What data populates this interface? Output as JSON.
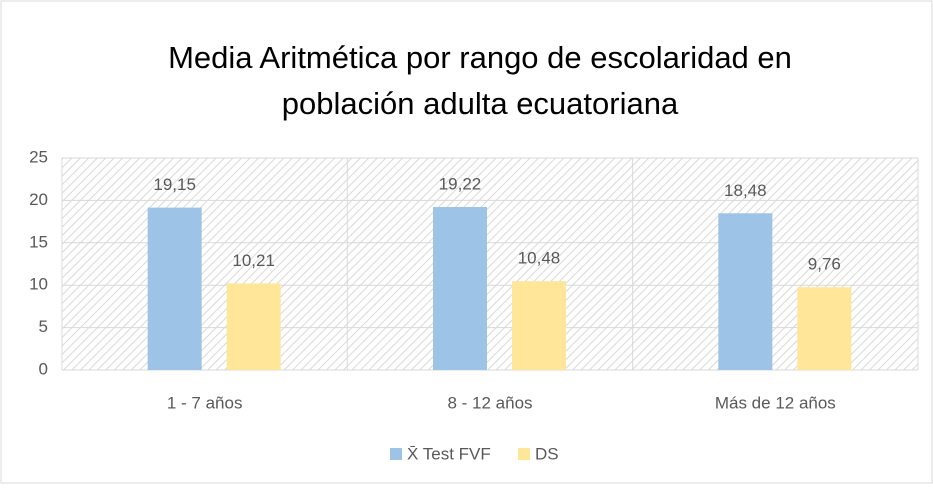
{
  "chart_data": {
    "type": "bar",
    "title": [
      "Media Aritmética por rango de escolaridad en",
      "población adulta ecuatoriana"
    ],
    "categories": [
      "1 - 7 años",
      "8 - 12 años",
      "Más de 12 años"
    ],
    "series": [
      {
        "name": "X̄ Test FVF",
        "color": "#9dc3e6",
        "values": [
          19.15,
          19.22,
          18.48
        ],
        "value_labels": [
          "19,15",
          "19,22",
          "18,48"
        ]
      },
      {
        "name": "DS",
        "color": "#ffe699",
        "values": [
          10.21,
          10.48,
          9.76
        ],
        "value_labels": [
          "10,21",
          "10,48",
          "9,76"
        ]
      }
    ],
    "ylim": [
      0,
      25
    ],
    "yticks": [
      0,
      5,
      10,
      15,
      20,
      25
    ],
    "grid": true,
    "legend": "bottom"
  }
}
